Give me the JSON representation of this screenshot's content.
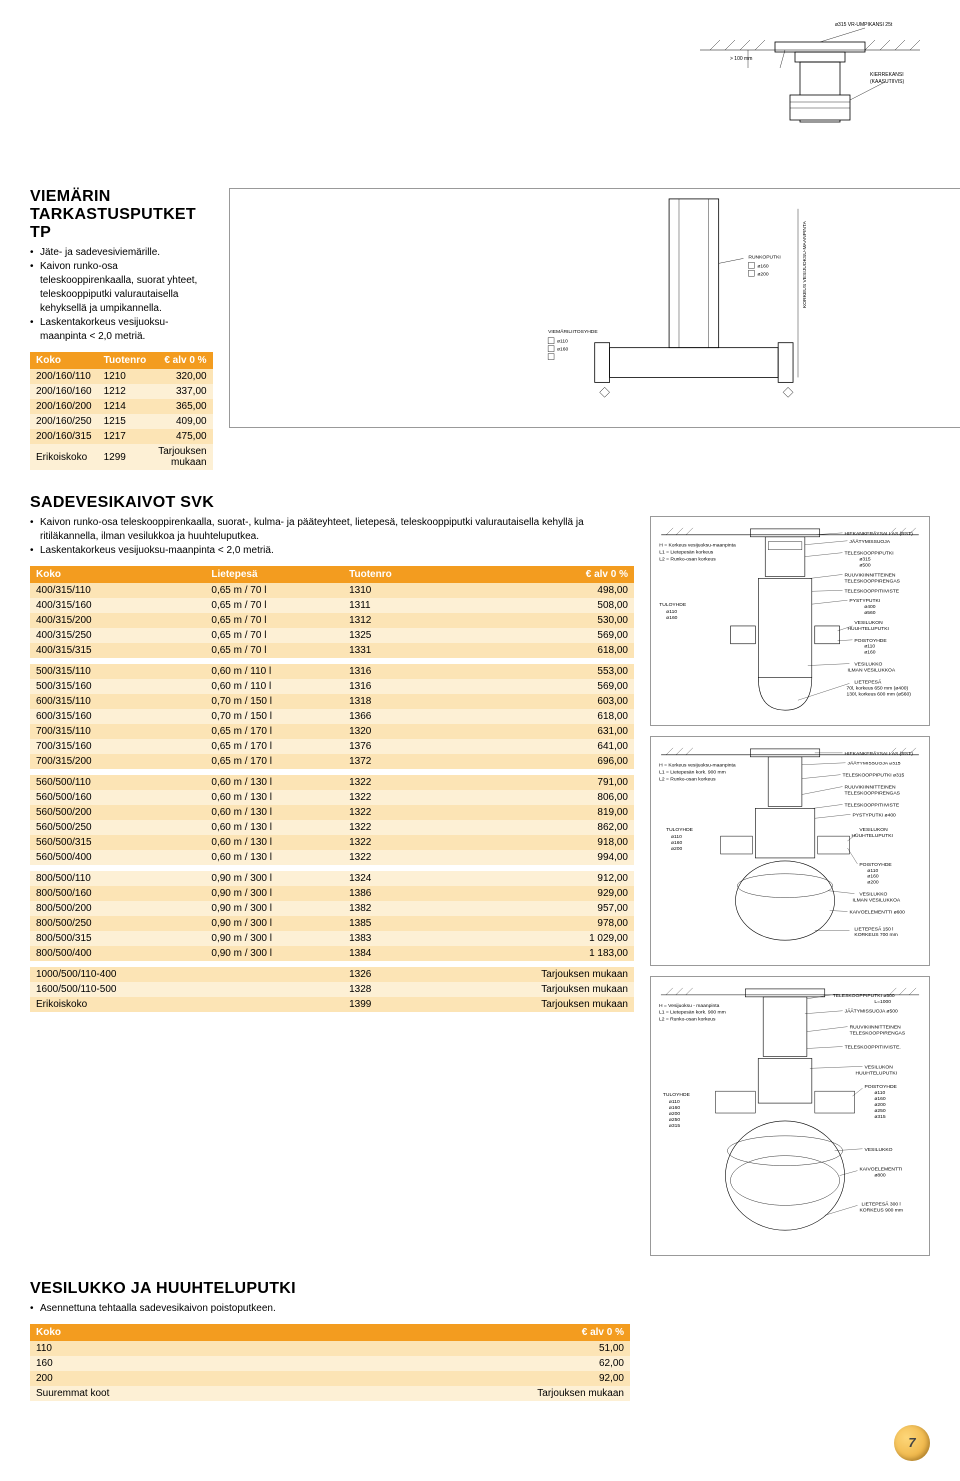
{
  "topfig": {
    "label_top": "ø315 VR-UMPIKANSI 25t",
    "label_100": "> 100 mm",
    "label_k": "KIERREKANSI\n(KAASUTIIVIS)"
  },
  "section1": {
    "heading": "VIEMÄRIN TARKASTUSPUTKET TP",
    "bullets": [
      "Jäte- ja sadevesiviemärille.",
      "Kaivon runko-osa teleskooppirenkaalla, suorat yhteet, teleskooppiputki valurautaisella kehyksellä ja umpikannella.",
      "Laskentakorkeus vesijuoksu-maanpinta < 2,0 metriä."
    ],
    "headers": [
      "Koko",
      "Tuotenro",
      "€ alv 0 %"
    ],
    "rows": [
      [
        "200/160/110",
        "1210",
        "320,00"
      ],
      [
        "200/160/160",
        "1212",
        "337,00"
      ],
      [
        "200/160/200",
        "1214",
        "365,00"
      ],
      [
        "200/160/250",
        "1215",
        "409,00"
      ],
      [
        "200/160/315",
        "1217",
        "475,00"
      ],
      [
        "Erikoiskoko",
        "1299",
        "Tarjouksen mukaan"
      ]
    ],
    "fig": {
      "viem": "VIEMÄRILIITOSYHDE",
      "d1": "ø110",
      "d2": "ø160",
      "runko": "RUNKOPUTKI",
      "r1": "ø160",
      "r2": "ø200",
      "side": "KORKEUS VESIJUOKSU-MAANPINTA"
    }
  },
  "section2": {
    "heading": "SADEVESIKAIVOT SVK",
    "bullets": [
      "Kaivon runko-osa teleskooppirenkaalla, suorat-, kulma- ja pääteyhteet, lietepesä, teleskooppiputki valurautaisella kehyllä ja ritiläkannella, ilman vesilukkoa ja huuhteluputkea.",
      "Laskentakorkeus vesijuoksu-maanpinta < 2,0 metriä."
    ],
    "headers": [
      "Koko",
      "Lietepesä",
      "Tuotenro",
      "€ alv 0 %"
    ],
    "g1": [
      [
        "400/315/110",
        "0,65 m / 70 l",
        "1310",
        "498,00"
      ],
      [
        "400/315/160",
        "0,65 m / 70 l",
        "1311",
        "508,00"
      ],
      [
        "400/315/200",
        "0,65 m / 70 l",
        "1312",
        "530,00"
      ],
      [
        "400/315/250",
        "0,65 m / 70 l",
        "1325",
        "569,00"
      ],
      [
        "400/315/315",
        "0,65 m / 70 l",
        "1331",
        "618,00"
      ]
    ],
    "g2": [
      [
        "500/315/110",
        "0,60 m / 110 l",
        "1316",
        "553,00"
      ],
      [
        "500/315/160",
        "0,60 m / 110 l",
        "1316",
        "569,00"
      ],
      [
        "600/315/110",
        "0,70 m / 150 l",
        "1318",
        "603,00"
      ],
      [
        "600/315/160",
        "0,70 m / 150 l",
        "1366",
        "618,00"
      ],
      [
        "700/315/110",
        "0,65 m / 170 l",
        "1320",
        "631,00"
      ],
      [
        "700/315/160",
        "0,65 m / 170 l",
        "1376",
        "641,00"
      ],
      [
        "700/315/200",
        "0,65 m / 170 l",
        "1372",
        "696,00"
      ]
    ],
    "g3": [
      [
        "560/500/110",
        "0,60 m / 130 l",
        "1322",
        "791,00"
      ],
      [
        "560/500/160",
        "0,60 m / 130 l",
        "1322",
        "806,00"
      ],
      [
        "560/500/200",
        "0,60 m / 130 l",
        "1322",
        "819,00"
      ],
      [
        "560/500/250",
        "0,60 m / 130 l",
        "1322",
        "862,00"
      ],
      [
        "560/500/315",
        "0,60 m / 130 l",
        "1322",
        "918,00"
      ],
      [
        "560/500/400",
        "0,60 m / 130 l",
        "1322",
        "994,00"
      ]
    ],
    "g4": [
      [
        "800/500/110",
        "0,90 m / 300 l",
        "1324",
        "912,00"
      ],
      [
        "800/500/160",
        "0,90 m / 300 l",
        "1386",
        "929,00"
      ],
      [
        "800/500/200",
        "0,90 m / 300 l",
        "1382",
        "957,00"
      ],
      [
        "800/500/250",
        "0,90 m / 300 l",
        "1385",
        "978,00"
      ],
      [
        "800/500/315",
        "0,90 m / 300 l",
        "1383",
        "1 029,00"
      ],
      [
        "800/500/400",
        "0,90 m / 300 l",
        "1384",
        "1 183,00"
      ]
    ],
    "g5": [
      [
        "1000/500/110-400",
        "",
        "1326",
        "Tarjouksen mukaan"
      ],
      [
        "1600/500/110-500",
        "",
        "1328",
        "Tarjouksen mukaan"
      ],
      [
        "Erikoiskoko",
        "",
        "1399",
        "Tarjouksen mukaan"
      ]
    ]
  },
  "section3": {
    "heading": "VESILUKKO JA HUUHTELUPUTKI",
    "bullets": [
      "Asennettuna tehtaalla sadevesikaivon poistoputkeen."
    ],
    "headers": [
      "Koko",
      "€ alv 0 %"
    ],
    "rows": [
      [
        "110",
        "51,00"
      ],
      [
        "160",
        "62,00"
      ],
      [
        "200",
        "92,00"
      ],
      [
        "Suuremmat koot",
        "Tarjouksen mukaan"
      ]
    ]
  },
  "pagenum": "7",
  "figlabels": {
    "f2": {
      "hk": "H = Korkeus vesijuoksu-maanpinta",
      "l1": "L1 = Lietepesän korkeus",
      "l2": "L2 = Runko-osan korkeus",
      "hiek": "HIEKANKERÄYSALLAS (RST)",
      "jaat": "JÄÄTYMISSUOJA",
      "tele": "TELESKOOPPIPUTKI",
      "t1": "ø315",
      "t2": "ø500",
      "ruuvi": "RUUVIKIINNITTEINEN",
      "ruuvi2": "TELESKOOPPIRENGAS",
      "tiiv": "TELESKOOPPITIIVISTE",
      "pysty": "PYSTYPUTKI",
      "p1": "ø400",
      "p2": "ø560",
      "vesi": "VESILUKON",
      "vesi2": "HUUHTELUPUTKI",
      "poisto": "POISTOYHDE",
      "po1": "ø110",
      "po2": "ø160",
      "vlukko": "VESILUKKO",
      "ilman": "ILMAN VESILUKKOA",
      "liete": "LIETEPESÄ",
      "li1": "70l, korkeus 650 mm (ø400)",
      "li2": "130l, korkeus 600 mm (ø560)",
      "tulo": "TULOYHDE",
      "tu1": "ø110",
      "tu2": "ø160"
    },
    "f3": {
      "hk": "H = Korkeus vesijuoksu-maanpinta",
      "l1": "L1 = Lietepesän kork. 900 mm",
      "l2": "L2 = Runko-osan korkeus",
      "hiek": "HIEKANKERÄYSALLAS (RST)",
      "jaat": "JÄÄTYMISSUOJA ø315",
      "tele": "TELESKOOPPIPUTKI ø315",
      "ruuvi": "RUUVIKIINNITTEINEN",
      "ruuvi2": "TELESKOOPPIRENGAS",
      "tiiv": "TELESKOOPPITIIVISTE",
      "pysty": "PYSTYPUTKI ø400",
      "vesi": "VESILUKON",
      "vesi2": "HUUHTELUPUTKI",
      "poisto": "POISTOYHDE",
      "po1": "ø110",
      "po2": "ø160",
      "po3": "ø200",
      "vlukko": "VESILUKKO",
      "ilman": "ILMAN VESILUKKOA",
      "kaivo": "KAIVOELEMENTTI ø600",
      "liete": "LIETEPESÄ 150 l",
      "li1": "KORKEUS 700 mm",
      "tulo": "TULOYHDE",
      "tu1": "ø110",
      "tu2": "ø160",
      "tu3": "ø200"
    },
    "f4": {
      "hk": "H = Vesijuoksu - maanpinta",
      "l1": "L1 = Lietepesän kork. 900 mm",
      "l2": "L2 = Runko-osan korkeus",
      "tele": "TELESKOOPPIPUTKI ø500",
      "tlen": "L=1000",
      "jaat": "JÄÄTYMISSUOJA ø500",
      "ruuvi": "RUUVIKIINNITTEINEN",
      "ruuvi2": "TELESKOOPPIRENGAS",
      "tiiv": "TELESKOOPPITIIVISTE.",
      "vesi": "VESILUKON",
      "vesi2": "HUUHTELUPUTKI",
      "poisto": "POISTOYHDE",
      "po1": "ø110",
      "po2": "ø160",
      "po3": "ø200",
      "po4": "ø250",
      "po5": "ø315",
      "vlukko": "VESILUKKO",
      "kaivo": "KAIVOELEMENTTI",
      "kaivo2": "ø800",
      "liete": "LIETEPESÄ 300 l",
      "li1": "KORKEUS 900 mm",
      "tulo": "TULOYHDE",
      "tu1": "ø110",
      "tu2": "ø160",
      "tu3": "ø200",
      "tu4": "ø250",
      "tu5": "ø315"
    }
  }
}
